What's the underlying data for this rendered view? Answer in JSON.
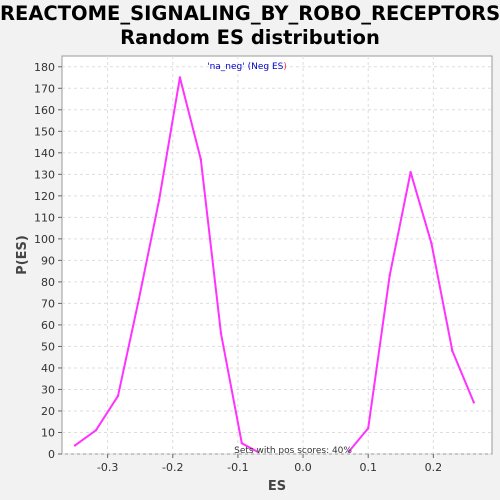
{
  "chart_data": {
    "type": "line",
    "title_line1": "REACTOME_SIGNALING_BY_ROBO_RECEPTORS:",
    "title_line2": "Random ES distribution",
    "xlabel": "ES",
    "ylabel": "P(ES)",
    "xlim": [
      -0.37,
      0.29
    ],
    "ylim": [
      0,
      185
    ],
    "xticks": [
      -0.3,
      -0.2,
      -0.1,
      0.0,
      0.1,
      0.2
    ],
    "xtick_labels": [
      "-0.3",
      "-0.2",
      "-0.1",
      "0.0",
      "0.1",
      "0.2"
    ],
    "yticks": [
      0,
      10,
      20,
      30,
      40,
      50,
      60,
      70,
      80,
      90,
      100,
      110,
      120,
      130,
      140,
      150,
      160,
      170,
      180
    ],
    "grid": true,
    "legend": {
      "position": "top-center",
      "prefix": "'na_neg' (",
      "label": "Neg ES",
      "suffix": ")"
    },
    "annotation": "Sets with pos scores: 40%",
    "series": [
      {
        "color": "#ff33ff",
        "segments": [
          {
            "x": [
              -0.35,
              -0.318,
              -0.284,
              -0.252,
              -0.221,
              -0.189,
              -0.157,
              -0.126,
              -0.094,
              -0.07
            ],
            "y": [
              4,
              11,
              27,
              72,
              118,
              175,
              137,
              56,
              5,
              1
            ]
          },
          {
            "x": [
              0.07,
              0.1,
              0.133,
              0.165,
              0.197,
              0.229,
              0.262
            ],
            "y": [
              1,
              12,
              83,
              131,
              98,
              48,
              24
            ]
          }
        ]
      }
    ]
  }
}
